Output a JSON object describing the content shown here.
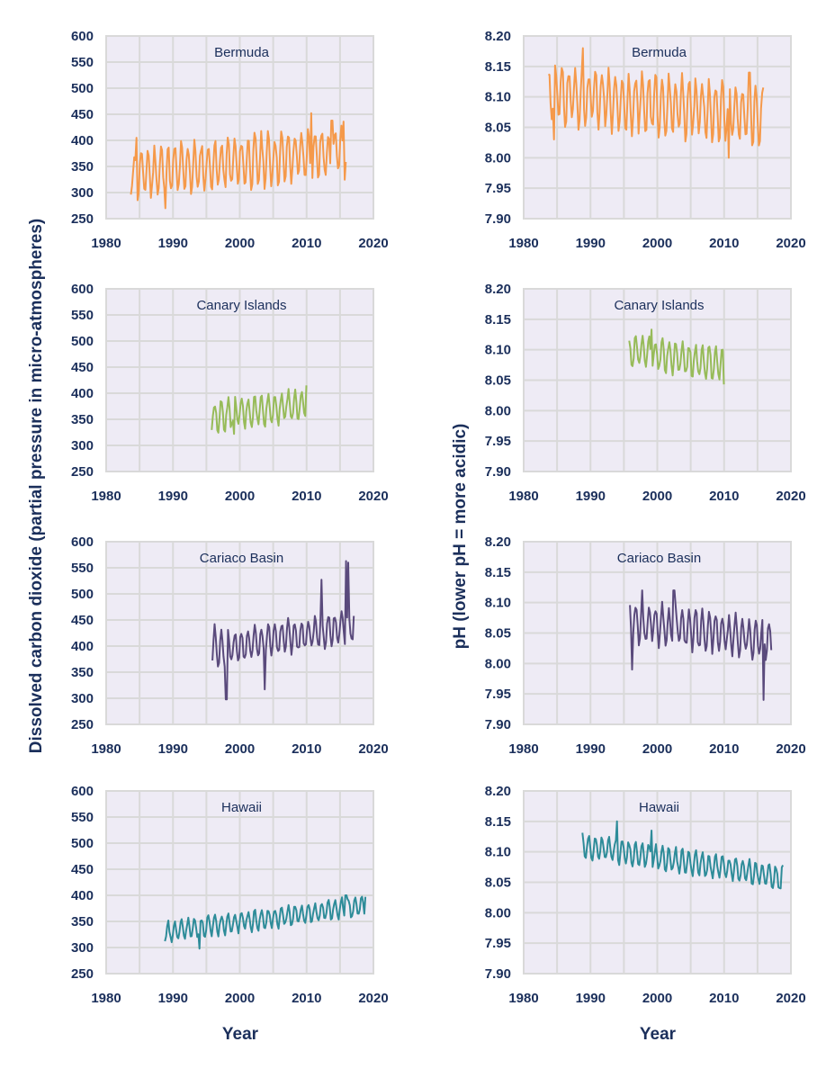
{
  "figure": {
    "left_ylabel": "Dissolved carbon dioxide (partial pressure in micro-atmospheres)",
    "right_ylabel": "pH (lower pH = more acidic)",
    "xlabel": "Year"
  },
  "chart_data": [
    {
      "type": "line",
      "id": "co2-bermuda",
      "title": "Bermuda",
      "column": "left",
      "row": 0,
      "color": "#f5994a",
      "xlim": [
        1980,
        2020
      ],
      "ylim": [
        250,
        600
      ],
      "xticks": [
        "1980",
        "1990",
        "2000",
        "2010",
        "2020"
      ],
      "yticks": [
        "600",
        "550",
        "500",
        "450",
        "400",
        "350",
        "300",
        "250"
      ],
      "grid": true,
      "x_start": 1983.7,
      "x_end": 2016.0,
      "trend_start": 335,
      "trend_end": 380,
      "amplitude": 45,
      "peaks": [
        [
          1984.6,
          405
        ],
        [
          1988.9,
          270
        ],
        [
          2010.7,
          452
        ],
        [
          2013.8,
          438
        ],
        [
          2015.6,
          436
        ]
      ]
    },
    {
      "type": "line",
      "id": "ph-bermuda",
      "title": "Bermuda",
      "column": "right",
      "row": 0,
      "color": "#f5994a",
      "xlim": [
        1980,
        2020
      ],
      "ylim": [
        7.9,
        8.2
      ],
      "xticks": [
        "1980",
        "1990",
        "2000",
        "2010",
        "2020"
      ],
      "yticks": [
        "8.20",
        "8.15",
        "8.10",
        "8.05",
        "8.00",
        "7.95",
        "7.90"
      ],
      "grid": true,
      "x_start": 1983.7,
      "x_end": 2016.0,
      "trend_start": 8.105,
      "trend_end": 8.07,
      "amplitude": 0.045,
      "peaks": [
        [
          1984.6,
          8.03
        ],
        [
          1988.9,
          8.18
        ],
        [
          2010.7,
          8.0
        ],
        [
          2013.8,
          8.14
        ]
      ]
    },
    {
      "type": "line",
      "id": "co2-canary",
      "title": "Canary Islands",
      "column": "left",
      "row": 1,
      "color": "#97bb59",
      "xlim": [
        1980,
        2020
      ],
      "ylim": [
        250,
        600
      ],
      "xticks": [
        "1980",
        "1990",
        "2000",
        "2010",
        "2020"
      ],
      "yticks": [
        "600",
        "550",
        "500",
        "450",
        "400",
        "350",
        "300",
        "250"
      ],
      "grid": true,
      "x_start": 1995.8,
      "x_end": 2010.0,
      "trend_start": 355,
      "trend_end": 380,
      "amplitude": 28,
      "peaks": [
        [
          1999.1,
          322
        ],
        [
          2010.0,
          415
        ]
      ]
    },
    {
      "type": "line",
      "id": "ph-canary",
      "title": "Canary Islands",
      "column": "right",
      "row": 1,
      "color": "#97bb59",
      "xlim": [
        1980,
        2020
      ],
      "ylim": [
        7.9,
        8.2
      ],
      "xticks": [
        "1980",
        "1990",
        "2000",
        "2010",
        "2020"
      ],
      "yticks": [
        "8.20",
        "8.15",
        "8.10",
        "8.05",
        "8.00",
        "7.95",
        "7.90"
      ],
      "grid": true,
      "x_start": 1995.8,
      "x_end": 2010.0,
      "trend_start": 8.098,
      "trend_end": 8.075,
      "amplitude": 0.025,
      "peaks": [
        [
          1999.1,
          8.133
        ],
        [
          2010.0,
          8.043
        ]
      ]
    },
    {
      "type": "line",
      "id": "co2-cariaco",
      "title": "Cariaco Basin",
      "column": "left",
      "row": 2,
      "color": "#5a4a7c",
      "xlim": [
        1980,
        2020
      ],
      "ylim": [
        250,
        600
      ],
      "xticks": [
        "1980",
        "1990",
        "2000",
        "2010",
        "2020"
      ],
      "yticks": [
        "600",
        "550",
        "500",
        "450",
        "400",
        "350",
        "300",
        "250"
      ],
      "grid": true,
      "x_start": 1995.9,
      "x_end": 2017.2,
      "trend_start": 390,
      "trend_end": 440,
      "amplitude": 30,
      "peaks": [
        [
          1996.3,
          442
        ],
        [
          1998.0,
          298
        ],
        [
          2003.8,
          317
        ],
        [
          2012.2,
          527
        ],
        [
          2015.9,
          563
        ],
        [
          2016.2,
          560
        ],
        [
          2017.2,
          372
        ]
      ]
    },
    {
      "type": "line",
      "id": "ph-cariaco",
      "title": "Cariaco Basin",
      "column": "right",
      "row": 2,
      "color": "#5a4a7c",
      "xlim": [
        1980,
        2020
      ],
      "ylim": [
        7.9,
        8.2
      ],
      "xticks": [
        "1980",
        "1990",
        "2000",
        "2010",
        "2020"
      ],
      "yticks": [
        "8.20",
        "8.15",
        "8.10",
        "8.05",
        "8.00",
        "7.95",
        "7.90"
      ],
      "grid": true,
      "x_start": 1995.9,
      "x_end": 2017.2,
      "trend_start": 8.07,
      "trend_end": 8.04,
      "amplitude": 0.03,
      "peaks": [
        [
          1996.3,
          7.99
        ],
        [
          1997.7,
          8.12
        ],
        [
          2002.5,
          8.12
        ],
        [
          2015.9,
          7.94
        ]
      ]
    },
    {
      "type": "line",
      "id": "co2-hawaii",
      "title": "Hawaii",
      "column": "left",
      "row": 3,
      "color": "#2e8c99",
      "xlim": [
        1980,
        2020
      ],
      "ylim": [
        250,
        600
      ],
      "xticks": [
        "1980",
        "1990",
        "2000",
        "2010",
        "2020"
      ],
      "yticks": [
        "600",
        "550",
        "500",
        "450",
        "400",
        "350",
        "300",
        "250"
      ],
      "grid": true,
      "x_start": 1988.8,
      "x_end": 2018.9,
      "trend_start": 330,
      "trend_end": 380,
      "amplitude": 18,
      "peaks": [
        [
          1994.0,
          298
        ],
        [
          2015.9,
          400
        ],
        [
          2018.8,
          397
        ]
      ]
    },
    {
      "type": "line",
      "id": "ph-hawaii",
      "title": "Hawaii",
      "column": "right",
      "row": 3,
      "color": "#2e8c99",
      "xlim": [
        1980,
        2020
      ],
      "ylim": [
        7.9,
        8.2
      ],
      "xticks": [
        "1980",
        "1990",
        "2000",
        "2010",
        "2020"
      ],
      "yticks": [
        "8.20",
        "8.15",
        "8.10",
        "8.05",
        "8.00",
        "7.95",
        "7.90"
      ],
      "grid": true,
      "x_start": 1988.8,
      "x_end": 2018.9,
      "trend_start": 8.11,
      "trend_end": 8.058,
      "amplitude": 0.018,
      "peaks": [
        [
          1994.0,
          8.15
        ],
        [
          1999.1,
          8.135
        ],
        [
          2018.5,
          8.04
        ]
      ]
    }
  ]
}
